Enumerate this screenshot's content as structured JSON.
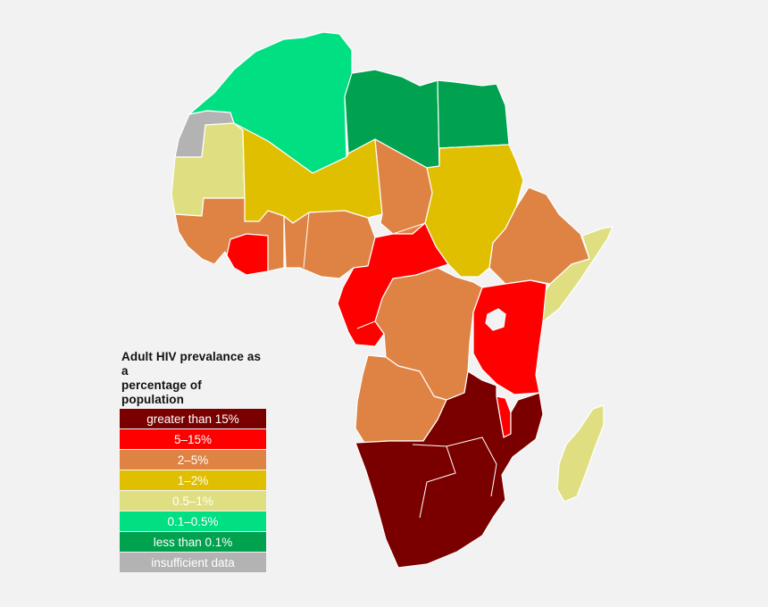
{
  "legend": {
    "title_line1": "Adult HIV prevalance as a",
    "title_line2": "percentage of population",
    "items": [
      {
        "label": "greater than 15%",
        "color": "#7a0000"
      },
      {
        "label": "5–15%",
        "color": "#ff0000"
      },
      {
        "label": "2–5%",
        "color": "#df8345"
      },
      {
        "label": "1–2%",
        "color": "#dfbf00"
      },
      {
        "label": "0.5–1%",
        "color": "#dfdf82"
      },
      {
        "label": "0.1–0.5%",
        "color": "#00df82"
      },
      {
        "label": "less than 0.1%",
        "color": "#00a14f"
      },
      {
        "label": "insufficient data",
        "color": "#b3b3b3"
      }
    ]
  },
  "regions": [
    {
      "name": "western-sahara",
      "category": 7
    },
    {
      "name": "morocco-algeria-tunisia",
      "category": 5
    },
    {
      "name": "libya",
      "category": 6
    },
    {
      "name": "egypt",
      "category": 6
    },
    {
      "name": "mauritania-senegal",
      "category": 4
    },
    {
      "name": "mali-niger-burkina",
      "category": 3
    },
    {
      "name": "sudan-eritrea",
      "category": 3
    },
    {
      "name": "somalia",
      "category": 4
    },
    {
      "name": "madagascar",
      "category": 4
    },
    {
      "name": "chad",
      "category": 2
    },
    {
      "name": "ethiopia-south-sudan",
      "category": 2
    },
    {
      "name": "guinea-liberia",
      "category": 2
    },
    {
      "name": "nigeria-ghana",
      "category": 2
    },
    {
      "name": "drc",
      "category": 2
    },
    {
      "name": "angola",
      "category": 2
    },
    {
      "name": "sierra-leone-cote-divoire",
      "category": 1
    },
    {
      "name": "cameroon-car-gabon",
      "category": 1
    },
    {
      "name": "east-africa-kenya-tanzania",
      "category": 1
    },
    {
      "name": "malawi",
      "category": 1
    },
    {
      "name": "lake-victoria",
      "category": 8
    },
    {
      "name": "southern-africa",
      "category": 0
    }
  ]
}
